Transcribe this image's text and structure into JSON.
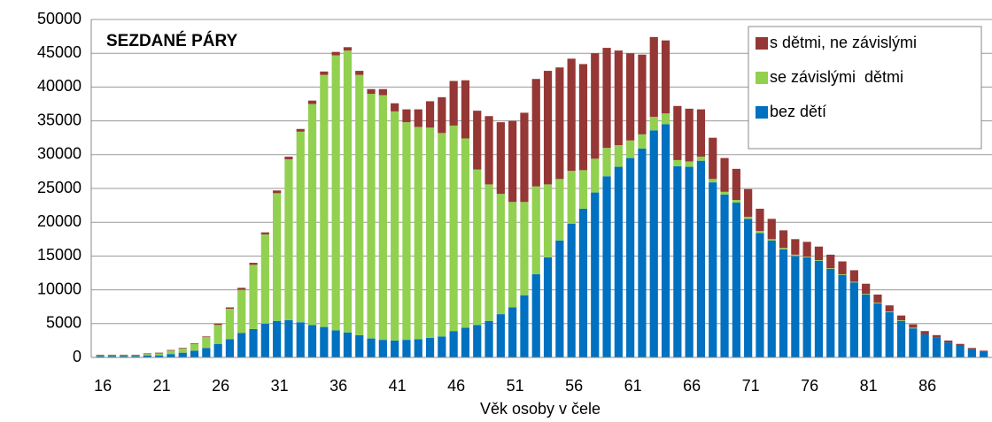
{
  "chart_data": {
    "type": "stacked_bar",
    "title": "SEZDANÉ PÁRY",
    "x_label": "Věk osoby v čele",
    "categories": [
      "16",
      null,
      null,
      null,
      null,
      "21",
      null,
      null,
      null,
      null,
      "26",
      null,
      null,
      null,
      null,
      "31",
      null,
      null,
      null,
      null,
      "36",
      null,
      null,
      null,
      null,
      "41",
      null,
      null,
      null,
      null,
      "46",
      null,
      null,
      null,
      null,
      "51",
      null,
      null,
      null,
      null,
      "56",
      null,
      null,
      null,
      null,
      "61",
      null,
      null,
      null,
      null,
      "66",
      null,
      null,
      null,
      null,
      "71",
      null,
      null,
      null,
      null,
      "76",
      null,
      null,
      null,
      null,
      "81",
      null,
      null,
      null,
      null,
      "86",
      null,
      null,
      null,
      null,
      null
    ],
    "series": [
      {
        "name": "bez dětí",
        "color": "#0070c0",
        "values": [
          200,
          200,
          200,
          200,
          300,
          300,
          500,
          700,
          1000,
          1400,
          2000,
          2700,
          3600,
          4200,
          5000,
          5400,
          5500,
          5200,
          4800,
          4500,
          4000,
          3700,
          3300,
          2800,
          2600,
          2500,
          2600,
          2700,
          2900,
          3100,
          3900,
          4400,
          4800,
          5400,
          6400,
          7400,
          9200,
          12300,
          14800,
          17300,
          19800,
          22000,
          24400,
          26800,
          28200,
          29500,
          30900,
          33600,
          34500,
          28300,
          28200,
          29100,
          25900,
          24100,
          22900,
          20500,
          18400,
          17300,
          16000,
          15000,
          14800,
          14300,
          13100,
          12200,
          11100,
          9300,
          8000,
          6700,
          5400,
          4300,
          3400,
          2900,
          2200,
          1700,
          1200,
          800
        ]
      },
      {
        "name": "se závislými  dětmi",
        "color": "#92d050",
        "values": [
          100,
          100,
          100,
          100,
          200,
          300,
          500,
          600,
          1000,
          1600,
          2800,
          4500,
          6400,
          9500,
          13200,
          18900,
          23800,
          28200,
          32700,
          37300,
          40700,
          41700,
          38500,
          36200,
          36200,
          33900,
          32200,
          31400,
          31100,
          30100,
          30400,
          28000,
          23000,
          20200,
          17800,
          15600,
          13800,
          13000,
          10800,
          9100,
          7800,
          5700,
          5000,
          4200,
          3200,
          2600,
          2100,
          2000,
          1600,
          900,
          800,
          600,
          500,
          400,
          400,
          300,
          300,
          200,
          200,
          200,
          100,
          100,
          100,
          100,
          100,
          100,
          100,
          100,
          100,
          100,
          0,
          0,
          0,
          0,
          0,
          0
        ]
      },
      {
        "name": "s dětmi, ne závislými",
        "color": "#953735",
        "values": [
          100,
          100,
          100,
          100,
          100,
          100,
          100,
          100,
          100,
          100,
          200,
          200,
          300,
          300,
          300,
          400,
          400,
          400,
          500,
          500,
          500,
          500,
          600,
          700,
          900,
          1200,
          1900,
          2600,
          3900,
          5300,
          6600,
          8600,
          8700,
          10100,
          10600,
          12000,
          13200,
          15900,
          16800,
          16500,
          16600,
          15700,
          15600,
          14800,
          14000,
          12900,
          11800,
          11800,
          10800,
          8000,
          7800,
          7000,
          6100,
          5000,
          4600,
          4100,
          3300,
          3000,
          2600,
          2300,
          2200,
          2000,
          2000,
          1900,
          1700,
          1500,
          1200,
          900,
          700,
          500,
          500,
          400,
          300,
          300,
          200,
          200
        ]
      }
    ],
    "ylim": [
      0,
      50000
    ],
    "yticks": [
      0,
      5000,
      10000,
      15000,
      20000,
      25000,
      30000,
      35000,
      40000,
      45000,
      50000
    ],
    "grid": true
  }
}
